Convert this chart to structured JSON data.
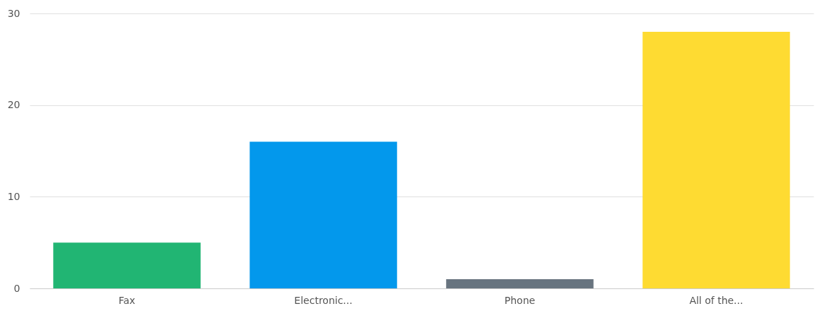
{
  "chart_data": {
    "type": "bar",
    "categories": [
      "Fax",
      "Electronic...",
      "Phone",
      "All of the..."
    ],
    "values": [
      5,
      16,
      1,
      28
    ],
    "colors": [
      "#21b573",
      "#0398ec",
      "#68747f",
      "#fedb32"
    ],
    "ylim": [
      0,
      30
    ],
    "yticks": [
      0,
      10,
      20,
      30
    ],
    "grid": "y",
    "legend": false
  }
}
